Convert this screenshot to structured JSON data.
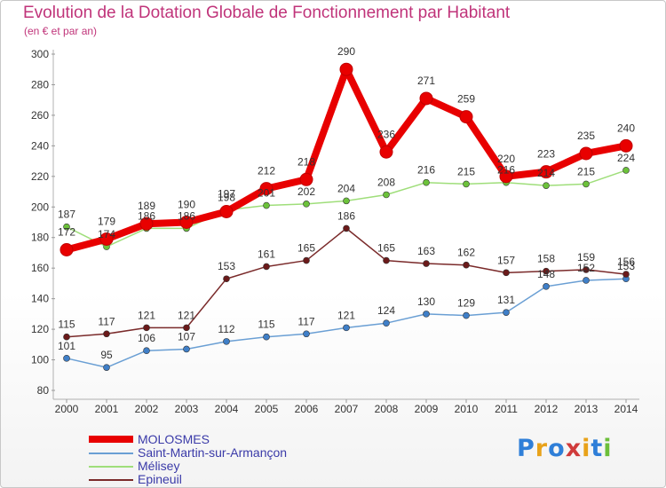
{
  "chart_data": {
    "type": "line",
    "title": "Evolution de la Dotation Globale de Fonctionnement par Habitant",
    "subtitle": "(en € et par an)",
    "xlabel": "",
    "ylabel": "",
    "x": [
      "2000",
      "2001",
      "2002",
      "2003",
      "2004",
      "2005",
      "2006",
      "2007",
      "2008",
      "2009",
      "2010",
      "2011",
      "2012",
      "2013",
      "2014"
    ],
    "ylim": [
      80,
      300
    ],
    "yticks": [
      80,
      100,
      120,
      140,
      160,
      180,
      200,
      220,
      240,
      260,
      280,
      300
    ],
    "grid": false,
    "legend_position": "bottom-left",
    "series": [
      {
        "name": "MOLOSMES",
        "color": "#e80000",
        "marker": "#e80000",
        "values": [
          172,
          179,
          189,
          190,
          197,
          212,
          218,
          290,
          236,
          271,
          259,
          220,
          223,
          235,
          240
        ],
        "labels": [
          "172",
          "179",
          "189",
          "190",
          "197",
          "212",
          "218",
          "290",
          "236",
          "271",
          "259",
          "220",
          "223",
          "235",
          "240"
        ]
      },
      {
        "name": "Saint-Martin-sur-Armançon",
        "color": "#6a9fd4",
        "marker": "#3f7fc8",
        "values": [
          101,
          95,
          106,
          107,
          112,
          115,
          117,
          121,
          124,
          130,
          129,
          131,
          148,
          152,
          153
        ],
        "labels": [
          "101",
          "95",
          "106",
          "107",
          "112",
          "115",
          "117",
          "121",
          "124",
          "130",
          "129",
          "131",
          "148",
          "152",
          "153"
        ]
      },
      {
        "name": "Mélisey",
        "color": "#9fde7a",
        "marker": "#6cc23a",
        "values": [
          187,
          174,
          186,
          186,
          198,
          201,
          202,
          204,
          208,
          216,
          215,
          216,
          214,
          215,
          224
        ],
        "labels": [
          "187",
          "174",
          "186",
          "186",
          "198",
          "201",
          "202",
          "204",
          "208",
          "216",
          "215",
          "216",
          "214",
          "215",
          "224"
        ]
      },
      {
        "name": "Epineuil",
        "color": "#7a2a2a",
        "marker": "#6b1a1a",
        "values": [
          115,
          117,
          121,
          121,
          153,
          161,
          165,
          186,
          165,
          163,
          162,
          157,
          158,
          159,
          156
        ],
        "labels": [
          "115",
          "117",
          "121",
          "121",
          "153",
          "161",
          "165",
          "186",
          "165",
          "163",
          "162",
          "157",
          "158",
          "159",
          "156"
        ]
      }
    ]
  },
  "logo": {
    "text": "Proxiti"
  },
  "colors": {
    "title": "#c0347a",
    "legend_text": "#3a3aa8",
    "axis": "#999999"
  }
}
